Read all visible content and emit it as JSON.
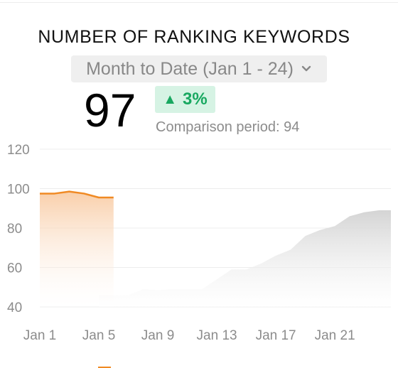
{
  "header": {
    "title": "NUMBER OF RANKING KEYWORDS",
    "period": "Month to Date (Jan 1 - 24)"
  },
  "kpi": {
    "value": "97",
    "change": "3%",
    "change_direction": "up",
    "comparison_label": "Comparison period:",
    "comparison_value": "94"
  },
  "colors": {
    "current": "#f08a24",
    "comparison": "#d9d9d9",
    "positive": "#18a860"
  },
  "icons": {
    "dropdown": "chevron-down-icon",
    "change": "triangle-up-icon"
  },
  "chart_data": {
    "type": "area",
    "title": "NUMBER OF RANKING KEYWORDS",
    "xlabel": "",
    "ylabel": "",
    "ylim": [
      40,
      120
    ],
    "yticks": [
      40,
      60,
      80,
      100,
      120
    ],
    "xlim": [
      1,
      24.8
    ],
    "xticks": [
      {
        "value": 1,
        "label": "Jan 1"
      },
      {
        "value": 5,
        "label": "Jan 5"
      },
      {
        "value": 9,
        "label": "Jan 9"
      },
      {
        "value": 13,
        "label": "Jan 13"
      },
      {
        "value": 17,
        "label": "Jan 17"
      },
      {
        "value": 21,
        "label": "Jan 21"
      }
    ],
    "grid": true,
    "series": [
      {
        "name": "",
        "role": "current",
        "x": [
          1,
          2,
          3,
          4,
          5,
          6
        ],
        "values": [
          97.5,
          97.5,
          98.5,
          97.5,
          95.5,
          95.5
        ]
      },
      {
        "name": "",
        "role": "comparison",
        "x": [
          5,
          6,
          7,
          8,
          9,
          10,
          11,
          12,
          13,
          14,
          15,
          16,
          17,
          18,
          19,
          20,
          21,
          22,
          23,
          24,
          24.8
        ],
        "values": [
          46,
          46,
          46,
          49,
          48.5,
          49,
          49,
          49,
          54,
          59,
          59,
          62,
          66,
          69,
          76,
          79,
          81,
          86,
          88,
          89,
          89
        ]
      }
    ]
  }
}
